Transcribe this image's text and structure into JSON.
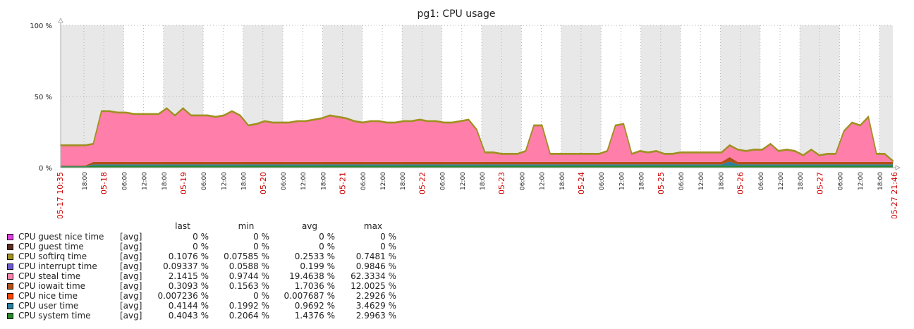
{
  "chart_data": {
    "type": "area",
    "title": "pg1: CPU usage",
    "y_ticks": [
      "0 %",
      "50 %",
      "100 %"
    ],
    "ylim": [
      0,
      100
    ],
    "x_start_label": "05-17 10:35",
    "x_end_label": "05-27 21:46",
    "x_ticks": [
      "18:00",
      "05-18",
      "06:00",
      "12:00",
      "18:00",
      "05-19",
      "06:00",
      "12:00",
      "18:00",
      "05-20",
      "06:00",
      "12:00",
      "18:00",
      "05-21",
      "06:00",
      "12:00",
      "18:00",
      "05-22",
      "06:00",
      "12:00",
      "18:00",
      "05-23",
      "06:00",
      "12:00",
      "18:00",
      "05-24",
      "06:00",
      "12:00",
      "18:00",
      "05-25",
      "06:00",
      "12:00",
      "18:00",
      "05-26",
      "06:00",
      "12:00",
      "18:00",
      "05-27",
      "06:00",
      "12:00",
      "18:00"
    ],
    "x_tick_date_color": "#cc0000",
    "shading": "nights shaded grey",
    "total_usage_profile": [
      16,
      16,
      16,
      16,
      17,
      40,
      40,
      39,
      39,
      38,
      38,
      38,
      38,
      42,
      37,
      42,
      37,
      37,
      37,
      36,
      37,
      40,
      37,
      30,
      31,
      33,
      32,
      32,
      32,
      33,
      33,
      34,
      35,
      37,
      36,
      35,
      33,
      32,
      33,
      33,
      32,
      32,
      33,
      33,
      34,
      33,
      33,
      32,
      32,
      33,
      34,
      27,
      11,
      11,
      10,
      10,
      10,
      12,
      30,
      30,
      10,
      10,
      10,
      10,
      10,
      10,
      10,
      12,
      30,
      31,
      10,
      12,
      11,
      12,
      10,
      10,
      11,
      11,
      11,
      11,
      11,
      11,
      16,
      13,
      12,
      13,
      13,
      17,
      12,
      13,
      12,
      9,
      13,
      9,
      10,
      10,
      26,
      32,
      30,
      36,
      10,
      10,
      5
    ]
  },
  "legend": {
    "headers": {
      "last": "last",
      "min": "min",
      "avg": "avg",
      "max": "max"
    },
    "items": [
      {
        "name": "CPU guest nice time",
        "agg": "[avg]",
        "last": "0 %",
        "min": "0 %",
        "avg": "0 %",
        "max": "0 %",
        "color": "#e040e0"
      },
      {
        "name": "CPU guest time",
        "agg": "[avg]",
        "last": "0 %",
        "min": "0 %",
        "avg": "0 %",
        "max": "0 %",
        "color": "#5c2c1c"
      },
      {
        "name": "CPU softirq time",
        "agg": "[avg]",
        "last": "0.1076 %",
        "min": "0.07585 %",
        "avg": "0.2533 %",
        "max": "0.7481 %",
        "color": "#a09020"
      },
      {
        "name": "CPU interrupt time",
        "agg": "[avg]",
        "last": "0.09337 %",
        "min": "0.0588 %",
        "avg": "0.199 %",
        "max": "0.9846 %",
        "color": "#6a5acd"
      },
      {
        "name": "CPU steal time",
        "agg": "[avg]",
        "last": "2.1415 %",
        "min": "0.9744 %",
        "avg": "19.4638 %",
        "max": "62.3334 %",
        "color": "#ff7faa"
      },
      {
        "name": "CPU iowait time",
        "agg": "[avg]",
        "last": "0.3093 %",
        "min": "0.1563 %",
        "avg": "1.7036 %",
        "max": "12.0025 %",
        "color": "#b05018"
      },
      {
        "name": "CPU nice time",
        "agg": "[avg]",
        "last": "0.007236 %",
        "min": "0 %",
        "avg": "0.007687 %",
        "max": "2.2926 %",
        "color": "#ff4000"
      },
      {
        "name": "CPU user time",
        "agg": "[avg]",
        "last": "0.4144 %",
        "min": "0.1992 %",
        "avg": "0.9692 %",
        "max": "3.4629 %",
        "color": "#2a7fa0"
      },
      {
        "name": "CPU system time",
        "agg": "[avg]",
        "last": "0.4043 %",
        "min": "0.2064 %",
        "avg": "1.4376 %",
        "max": "2.9963 %",
        "color": "#2a8a2a"
      }
    ]
  }
}
